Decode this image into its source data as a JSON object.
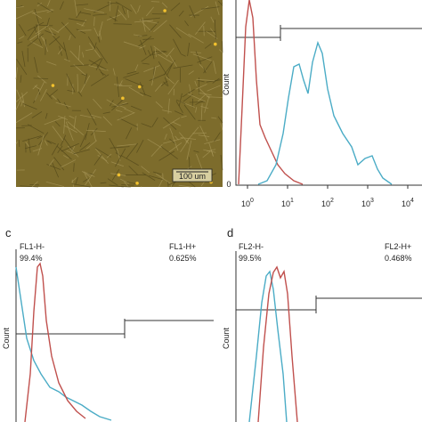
{
  "panel_a": {
    "scale_bar": "100 um"
  },
  "panel_b": {
    "y_label": "Count",
    "origin": "0",
    "x_ticks": [
      {
        "base": "10",
        "exp": "0"
      },
      {
        "base": "10",
        "exp": "1"
      },
      {
        "base": "10",
        "exp": "2"
      },
      {
        "base": "10",
        "exp": "3"
      },
      {
        "base": "10",
        "exp": "4"
      }
    ]
  },
  "panel_c": {
    "letter": "c",
    "neg_label": "FL1-H-",
    "neg_pct": "99.4%",
    "pos_label": "FL1-H+",
    "pos_pct": "0.625%",
    "y_label": "Count"
  },
  "panel_d": {
    "letter": "d",
    "neg_label": "FL2-H-",
    "neg_pct": "99.5%",
    "pos_label": "FL2-H+",
    "pos_pct": "0.468%",
    "y_label": "Count"
  }
}
